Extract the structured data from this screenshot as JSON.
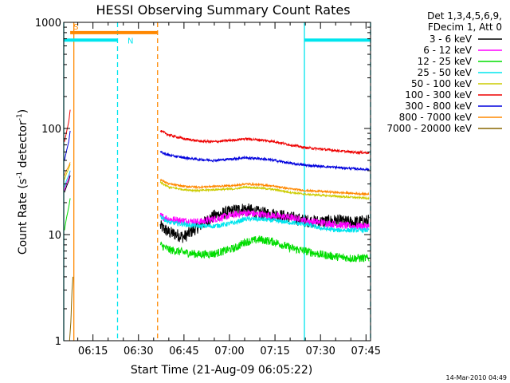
{
  "chart_data": {
    "type": "line",
    "title": "HESSI Observing Summary Count Rates",
    "xlabel": "Start Time (21-Aug-09 06:05:22)",
    "ylabel_main": "Count Rate (s",
    "ylabel_sup1": "-1",
    "ylabel_mid": " detector",
    "ylabel_sup2": "-1",
    "ylabel_end": ")",
    "footer": "14-Mar-2010 04:49",
    "x_axis": {
      "unit": "minutes since 06:00",
      "range": [
        5.37,
        106.5
      ],
      "ticks": [
        15,
        30,
        45,
        60,
        75,
        90,
        105
      ],
      "tick_labels": [
        "06:15",
        "06:30",
        "06:45",
        "07:00",
        "07:15",
        "07:30",
        "07:45"
      ]
    },
    "y_axis": {
      "scale": "log",
      "range": [
        1,
        1000
      ],
      "ticks": [
        1,
        10,
        100,
        1000
      ],
      "tick_labels": [
        "1",
        "10",
        "100",
        "1000"
      ]
    },
    "legend": {
      "placement": "right",
      "header": [
        "Det 1,3,4,5,6,9,",
        "FDecim 1, Att 0"
      ],
      "entries": [
        {
          "label": "3 - 6 keV",
          "color": "#000000"
        },
        {
          "label": "6 - 12 keV",
          "color": "#ff00ff"
        },
        {
          "label": "12 - 25 keV",
          "color": "#00dd00"
        },
        {
          "label": "25 - 50 keV",
          "color": "#00e5ee"
        },
        {
          "label": "50 - 100 keV",
          "color": "#cccc00"
        },
        {
          "label": "100 - 300 keV",
          "color": "#ee0000"
        },
        {
          "label": "300 - 800 keV",
          "color": "#0000dd"
        },
        {
          "label": "800 - 7000 keV",
          "color": "#ff8800"
        },
        {
          "label": "7000 - 20000 keV",
          "color": "#886600"
        }
      ]
    },
    "flags": [
      {
        "label": "S",
        "color": "#ff8800",
        "x_start": 7.5,
        "x_end": 36.3,
        "y": 800
      },
      {
        "label": "N",
        "color": "#00e5ee",
        "x_start": 5.37,
        "x_end": 23.1,
        "y": 680
      },
      {
        "label": "",
        "color": "#00e5ee",
        "x_start": 84.7,
        "x_end": 106.5,
        "y": 680
      }
    ],
    "event_lines": [
      {
        "x": 5.37,
        "color": "#00e5ee",
        "style": "solid"
      },
      {
        "x": 8.7,
        "color": "#ff8800",
        "style": "solid"
      },
      {
        "x": 23.1,
        "color": "#00e5ee",
        "style": "dashed"
      },
      {
        "x": 36.3,
        "color": "#ff8800",
        "style": "dashed"
      },
      {
        "x": 84.7,
        "color": "#00e5ee",
        "style": "solid"
      },
      {
        "x": 106.5,
        "color": "#00e5ee",
        "style": "dashed"
      }
    ],
    "series": [
      {
        "band": "3 - 6 keV",
        "color": "#000000",
        "noise": 0.14,
        "segments": [
          {
            "x": [
              5.6,
              6.2,
              7.0,
              7.5
            ],
            "y": [
              25,
              28,
              32,
              36
            ]
          },
          {
            "x": [
              37.2,
              40,
              45,
              48,
              55,
              62,
              65,
              70,
              75,
              80,
              85,
              90,
              95,
              100,
              106
            ],
            "y": [
              12,
              10.5,
              9.5,
              11,
              15,
              17,
              17.5,
              16,
              15.5,
              14.5,
              13.5,
              13.2,
              13.5,
              13,
              13.5
            ]
          }
        ]
      },
      {
        "band": "6 - 12 keV",
        "color": "#ff00ff",
        "noise": 0.08,
        "segments": [
          {
            "x": [
              5.6,
              6.2,
              7.0,
              7.5
            ],
            "y": [
              26,
              30,
              34,
              40
            ]
          },
          {
            "x": [
              37.2,
              40,
              45,
              50,
              55,
              62,
              65,
              70,
              75,
              80,
              85,
              90,
              95,
              100,
              106
            ],
            "y": [
              15,
              14,
              13.5,
              13.2,
              14,
              15.5,
              16,
              15.5,
              15,
              14.5,
              13.5,
              13,
              12.5,
              12,
              12
            ]
          }
        ]
      },
      {
        "band": "12 - 25 keV",
        "color": "#00dd00",
        "noise": 0.09,
        "segments": [
          {
            "x": [
              5.6,
              6.2,
              7.0,
              7.5
            ],
            "y": [
              11,
              14,
              18,
              22
            ]
          },
          {
            "x": [
              37.2,
              40,
              45,
              50,
              55,
              62,
              65,
              70,
              75,
              80,
              85,
              90,
              95,
              100,
              106
            ],
            "y": [
              8,
              7.2,
              6.8,
              6.5,
              6.6,
              7.5,
              8.5,
              9,
              8.5,
              7.5,
              7,
              6.5,
              6.2,
              6,
              6
            ]
          }
        ]
      },
      {
        "band": "25 - 50 keV",
        "color": "#00e5ee",
        "noise": 0.05,
        "segments": [
          {
            "x": [
              5.6,
              6.2,
              7.0,
              7.5
            ],
            "y": [
              28,
              32,
              36,
              40
            ]
          },
          {
            "x": [
              37.2,
              40,
              45,
              50,
              55,
              62,
              65,
              70,
              75,
              80,
              85,
              90,
              95,
              100,
              106
            ],
            "y": [
              15,
              13,
              12.5,
              12,
              12,
              13,
              14,
              14,
              13.5,
              13,
              12.5,
              11.5,
              11,
              11,
              11
            ]
          }
        ]
      },
      {
        "band": "50 - 100 keV",
        "color": "#cccc00",
        "noise": 0.02,
        "segments": [
          {
            "x": [
              5.6,
              6.2,
              7.0,
              7.5
            ],
            "y": [
              33,
              37,
              42,
              46
            ]
          },
          {
            "x": [
              37.2,
              40,
              45,
              50,
              55,
              62,
              65,
              70,
              75,
              80,
              85,
              90,
              95,
              100,
              106
            ],
            "y": [
              31,
              28,
              26.5,
              26,
              26.5,
              27,
              28,
              27.5,
              26.5,
              25,
              24,
              23.5,
              23,
              22.5,
              22
            ]
          }
        ]
      },
      {
        "band": "100 - 300 keV",
        "color": "#ee0000",
        "noise": 0.025,
        "segments": [
          {
            "x": [
              5.6,
              6.2,
              7.0,
              7.5
            ],
            "y": [
              75,
              90,
              115,
              150
            ]
          },
          {
            "x": [
              37.2,
              40,
              45,
              50,
              55,
              62,
              65,
              70,
              75,
              80,
              85,
              90,
              95,
              100,
              106
            ],
            "y": [
              95,
              87,
              80,
              76,
              75,
              78,
              80,
              78,
              75,
              70,
              66,
              64,
              62,
              60,
              59
            ]
          }
        ]
      },
      {
        "band": "300 - 800 keV",
        "color": "#0000dd",
        "noise": 0.025,
        "segments": [
          {
            "x": [
              5.6,
              6.2,
              7.0,
              7.5
            ],
            "y": [
              50,
              60,
              75,
              95
            ]
          },
          {
            "x": [
              37.2,
              40,
              45,
              50,
              55,
              62,
              65,
              70,
              75,
              80,
              85,
              90,
              95,
              100,
              106
            ],
            "y": [
              60,
              56,
              53,
              51,
              50,
              52,
              53,
              52,
              50,
              47,
              45,
              44,
              43,
              42,
              41
            ]
          }
        ]
      },
      {
        "band": "800 - 7000 keV",
        "color": "#ff8800",
        "noise": 0.02,
        "segments": [
          {
            "x": [
              5.6,
              6.2,
              7.0,
              7.5
            ],
            "y": [
              36,
              40,
              44,
              48
            ]
          },
          {
            "x": [
              37.2,
              40,
              45,
              50,
              55,
              62,
              65,
              70,
              75,
              80,
              85,
              90,
              95,
              100,
              106
            ],
            "y": [
              33,
              30,
              28.5,
              28,
              28.5,
              29,
              30,
              29.5,
              28.5,
              27,
              26,
              25.5,
              25,
              24.5,
              24
            ]
          }
        ]
      },
      {
        "band": "7000 - 20000 keV",
        "color": "#886600",
        "noise": 0.0,
        "segments": [
          {
            "x": [
              7.3,
              7.7,
              8.1,
              8.4
            ],
            "y": [
              1,
              1.5,
              3,
              4
            ]
          }
        ]
      }
    ]
  }
}
